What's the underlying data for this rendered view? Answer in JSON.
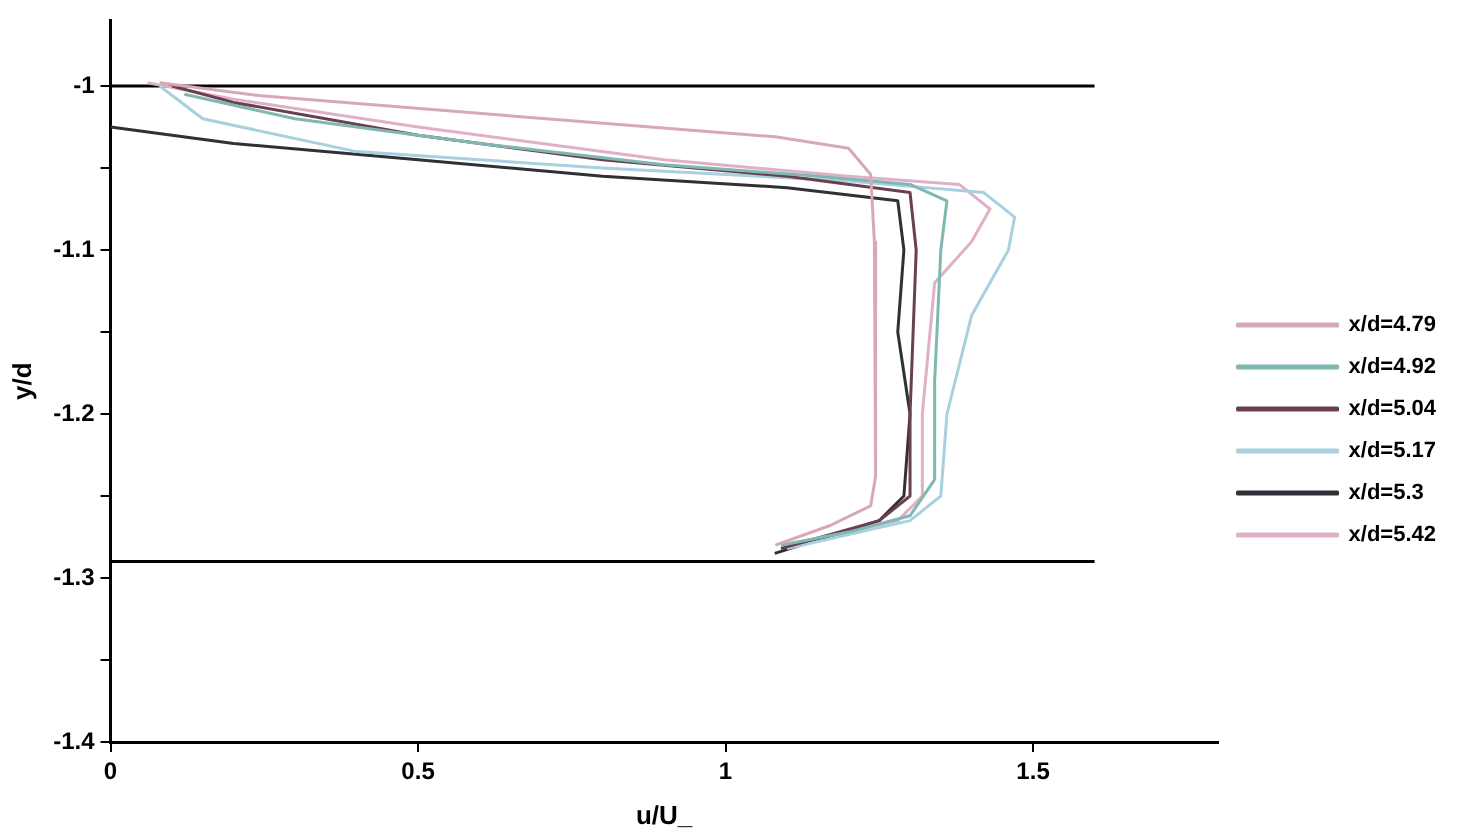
{
  "chart_data": {
    "type": "line",
    "xlabel": "u/U_",
    "ylabel": "y/d",
    "xlim": [
      0,
      1.8
    ],
    "xticks": [
      0,
      0.5,
      1,
      1.5
    ],
    "ylim": [
      -1.4,
      -0.96
    ],
    "yticks": [
      -1.4,
      {
        "value": -1.35,
        "label": null
      },
      -1.3,
      {
        "value": -1.25,
        "label": null
      },
      -1.2,
      {
        "value": -1.15,
        "label": null
      },
      -1.1,
      {
        "value": -1.05,
        "label": null
      },
      -1
    ],
    "grid": false,
    "legend": "right",
    "marker": "none",
    "line_style": "solid",
    "series": [
      {
        "name": "x/d=4.79",
        "color": "#d8a8b8",
        "x": [
          0.08,
          0.245,
          0.543,
          0.842,
          1.081,
          1.2,
          1.236,
          1.242,
          1.244,
          1.236,
          1.17,
          1.081
        ],
        "values": [
          -0.998,
          -1.006,
          -1.015,
          -1.024,
          -1.031,
          -1.038,
          -1.054,
          -1.095,
          -1.238,
          -1.256,
          -1.268,
          -1.28
        ]
      },
      {
        "name": "x/d=4.92",
        "color": "#7fb8b0",
        "x": [
          0.12,
          0.3,
          0.6,
          0.9,
          1.15,
          1.3,
          1.36,
          1.35,
          1.34,
          1.34,
          1.3,
          1.2,
          1.09
        ],
        "values": [
          -1.005,
          -1.02,
          -1.035,
          -1.048,
          -1.055,
          -1.06,
          -1.07,
          -1.1,
          -1.18,
          -1.24,
          -1.262,
          -1.272,
          -1.28
        ]
      },
      {
        "name": "x/d=5.04",
        "color": "#6a4050",
        "x": [
          0.1,
          0.2,
          0.5,
          0.8,
          1.1,
          1.3,
          1.31,
          1.3,
          1.3,
          1.25,
          1.09
        ],
        "values": [
          -1,
          -1.01,
          -1.03,
          -1.045,
          -1.055,
          -1.065,
          -1.1,
          -1.2,
          -1.25,
          -1.265,
          -1.282
        ]
      },
      {
        "name": "x/d=5.17",
        "color": "#a8d0e0",
        "x": [
          0.08,
          0.15,
          0.4,
          0.8,
          1.2,
          1.42,
          1.47,
          1.46,
          1.4,
          1.36,
          1.35,
          1.3,
          1.1
        ],
        "values": [
          -1,
          -1.02,
          -1.04,
          -1.05,
          -1.058,
          -1.065,
          -1.08,
          -1.1,
          -1.14,
          -1.2,
          -1.25,
          -1.265,
          -1.282
        ]
      },
      {
        "name": "x/d=5.3",
        "color": "#303038",
        "x": [
          0,
          0.2,
          0.5,
          0.8,
          1.1,
          1.28,
          1.29,
          1.28,
          1.3,
          1.29,
          1.25,
          1.08
        ],
        "values": [
          -1.025,
          -1.035,
          -1.045,
          -1.055,
          -1.062,
          -1.07,
          -1.1,
          -1.15,
          -1.2,
          -1.25,
          -1.265,
          -1.285
        ]
      },
      {
        "name": "x/d=5.42",
        "color": "#e0b0c8",
        "x": [
          0.06,
          0.2,
          0.5,
          0.9,
          1.2,
          1.38,
          1.43,
          1.4,
          1.34,
          1.32,
          1.32,
          1.28,
          1.1
        ],
        "values": [
          -0.998,
          -1.008,
          -1.025,
          -1.045,
          -1.055,
          -1.06,
          -1.075,
          -1.095,
          -1.12,
          -1.2,
          -1.25,
          -1.265,
          -1.28
        ]
      },
      {
        "color": "#000000",
        "x": [
          0,
          1.6
        ],
        "values": [
          -1,
          -1
        ]
      },
      {
        "color": "#000000",
        "x": [
          0,
          1.6
        ],
        "values": [
          -1.29,
          -1.29
        ]
      }
    ]
  }
}
